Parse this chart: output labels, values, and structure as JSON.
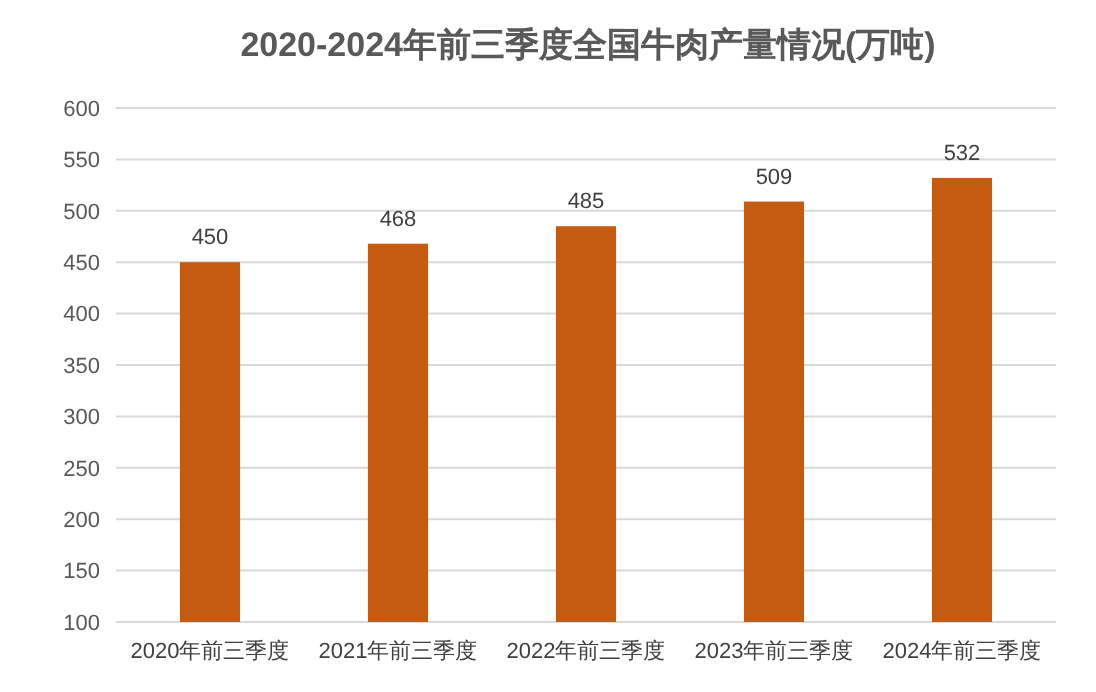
{
  "chart_data": {
    "type": "bar",
    "title": "2020-2024年前三季度全国牛肉产量情况(万吨)",
    "categories": [
      "2020年前三季度",
      "2021年前三季度",
      "2022年前三季度",
      "2023年前三季度",
      "2024年前三季度"
    ],
    "values": [
      450,
      468,
      485,
      509,
      532
    ],
    "color": "#c55a11",
    "ylim": [
      100,
      600
    ],
    "yticks": [
      100,
      150,
      200,
      250,
      300,
      350,
      400,
      450,
      500,
      550,
      600
    ],
    "grid": "y",
    "data_labels": true
  }
}
